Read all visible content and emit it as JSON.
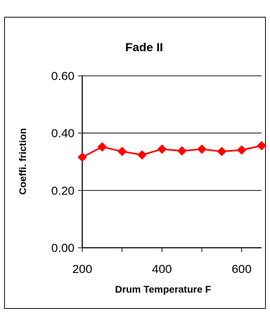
{
  "chart_data": {
    "type": "line",
    "title": "Fade II",
    "xlabel": "Drum Temperature F",
    "ylabel": "Coeffi. friction",
    "xlim": [
      200,
      650
    ],
    "ylim": [
      0,
      0.6
    ],
    "x_ticks": [
      200,
      400,
      600
    ],
    "y_ticks": [
      0,
      0.2,
      0.4,
      0.6
    ],
    "x_tick_labels": [
      "200",
      "400",
      "600"
    ],
    "y_tick_labels": [
      "0.00",
      "0.20",
      "0.40",
      "0.60"
    ],
    "grid": "horizontal-major",
    "legend": "none",
    "series_color": "#ff0000",
    "marker": "diamond",
    "x": [
      200,
      250,
      300,
      350,
      400,
      450,
      500,
      550,
      600,
      650
    ],
    "series": [
      {
        "values": [
          0.316,
          0.352,
          0.336,
          0.324,
          0.344,
          0.338,
          0.344,
          0.336,
          0.341,
          0.356
        ]
      }
    ]
  }
}
